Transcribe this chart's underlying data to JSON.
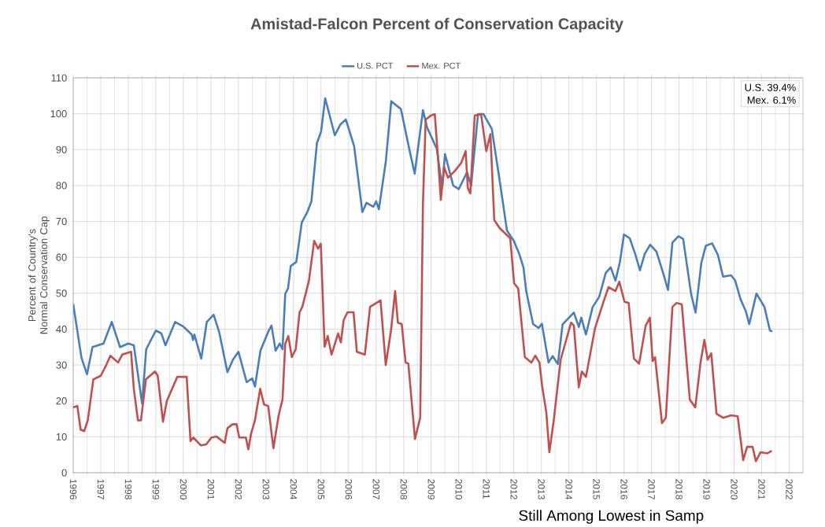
{
  "chart_data": {
    "type": "line",
    "title": "Amistad-Falcon Percent of Conservation Capacity",
    "ylabel": "Percent of Country's Normal Conservation Cap",
    "annotations": [
      "U.S. 39.4%",
      "Mex. 6.1%",
      "Still Among Lowest in Samp"
    ],
    "xlim": [
      1996,
      2022.5
    ],
    "xticks": [
      1996,
      1997,
      1998,
      1999,
      2000,
      2001,
      2002,
      2003,
      2004,
      2005,
      2006,
      2007,
      2008,
      2009,
      2010,
      2011,
      2012,
      2013,
      2014,
      2015,
      2016,
      2017,
      2018,
      2019,
      2020,
      2021,
      2022
    ],
    "ylim": [
      0,
      110
    ],
    "yticks": [
      0,
      10,
      20,
      30,
      40,
      50,
      60,
      70,
      80,
      90,
      100,
      110
    ],
    "grid": true,
    "legend": "top",
    "series": [
      {
        "name": "U.S. PCT",
        "color": "#4a7ebb",
        "x": [
          1996.0,
          1996.3,
          1996.5,
          1996.7,
          1997.1,
          1997.4,
          1997.7,
          1998.0,
          1998.2,
          1998.5,
          1998.65,
          1999.0,
          1999.2,
          1999.35,
          1999.7,
          2000.0,
          2000.3,
          2000.35,
          2000.4,
          2000.65,
          2000.85,
          2001.1,
          2001.3,
          2001.6,
          2001.8,
          2002.0,
          2002.3,
          2002.5,
          2002.6,
          2002.8,
          2003.1,
          2003.2,
          2003.35,
          2003.5,
          2003.6,
          2003.7,
          2003.8,
          2003.9,
          2004.1,
          2004.3,
          2004.5,
          2004.65,
          2004.85,
          2005.0,
          2005.15,
          2005.5,
          2005.7,
          2005.9,
          2006.2,
          2006.5,
          2006.65,
          2006.9,
          2007.0,
          2007.1,
          2007.35,
          2007.55,
          2007.9,
          2008.2,
          2008.4,
          2008.7,
          2008.85,
          2009.2,
          2009.4,
          2009.5,
          2009.8,
          2010.0,
          2010.3,
          2010.45,
          2010.7,
          2010.9,
          2011.2,
          2011.5,
          2011.75,
          2012.0,
          2012.2,
          2012.35,
          2012.45,
          2012.7,
          2012.9,
          2013.02,
          2013.26,
          2013.41,
          2013.6,
          2013.77,
          2014.18,
          2014.36,
          2014.45,
          2014.62,
          2014.86,
          2015.1,
          2015.34,
          2015.52,
          2015.69,
          2015.85,
          2016.0,
          2016.21,
          2016.41,
          2016.58,
          2016.75,
          2016.95,
          2017.18,
          2017.42,
          2017.6,
          2017.76,
          2017.98,
          2018.15,
          2018.44,
          2018.6,
          2018.81,
          2018.97,
          2019.2,
          2019.41,
          2019.6,
          2019.89,
          2020.04,
          2020.23,
          2020.42,
          2020.55,
          2020.81,
          2021.1,
          2021.3,
          2021.39
        ],
        "values": [
          47,
          32,
          27.4,
          35,
          36,
          42,
          35,
          36,
          35.5,
          19.3,
          34.4,
          39.6,
          38.8,
          35.5,
          42,
          40.7,
          38.5,
          37,
          38.5,
          31.8,
          42,
          44,
          39.2,
          28,
          31.5,
          33.7,
          25.2,
          26.3,
          24,
          34,
          39.6,
          41,
          34,
          36,
          34.4,
          49.9,
          51.3,
          57.6,
          58.7,
          69.7,
          72.6,
          75.6,
          91.8,
          95,
          104.3,
          94,
          97,
          98.4,
          91,
          72.6,
          75.2,
          74.1,
          75.6,
          73.4,
          86.6,
          103.5,
          101.3,
          90.3,
          83.3,
          101,
          96.2,
          90.3,
          79.5,
          88.8,
          80,
          79,
          83.7,
          80,
          99.9,
          99.9,
          95.8,
          80.7,
          67.5,
          64.6,
          60.9,
          57.2,
          50.6,
          41.4,
          40.3,
          41.5,
          30.7,
          32.5,
          30.3,
          41.3,
          44.6,
          40.6,
          43.2,
          38.5,
          46.1,
          49,
          55.7,
          57.2,
          53.5,
          58.6,
          66.4,
          65.3,
          60.9,
          56.4,
          60.9,
          63.5,
          61.6,
          55.7,
          50.9,
          64.1,
          65.9,
          65.1,
          49.7,
          44.6,
          58.5,
          63.2,
          63.9,
          60.7,
          54.6,
          55,
          53.5,
          48.4,
          45.1,
          41.4,
          49.9,
          46.2,
          39.6,
          39.4
        ]
      },
      {
        "name": "Mex. PCT",
        "color": "#c0504d",
        "x": [
          1996.0,
          1996.15,
          1996.27,
          1996.4,
          1996.53,
          1996.73,
          1997.0,
          1997.2,
          1997.35,
          1997.63,
          1997.78,
          1998.1,
          1998.2,
          1998.35,
          1998.46,
          1998.64,
          1998.97,
          1999.07,
          1999.26,
          1999.4,
          1999.78,
          2000.12,
          2000.26,
          2000.36,
          2000.64,
          2000.83,
          2001.02,
          2001.2,
          2001.5,
          2001.6,
          2001.79,
          2001.93,
          2002.03,
          2002.27,
          2002.36,
          2002.46,
          2002.6,
          2002.79,
          2002.93,
          2003.08,
          2003.27,
          2003.46,
          2003.6,
          2003.7,
          2003.81,
          2003.94,
          2004.08,
          2004.22,
          2004.32,
          2004.56,
          2004.75,
          2004.89,
          2004.99,
          2005.13,
          2005.24,
          2005.38,
          2005.62,
          2005.72,
          2005.82,
          2005.96,
          2006.18,
          2006.3,
          2006.59,
          2006.78,
          2007.16,
          2007.35,
          2007.54,
          2007.69,
          2007.79,
          2007.93,
          2008.07,
          2008.17,
          2008.41,
          2008.6,
          2008.7,
          2008.8,
          2008.99,
          2009.13,
          2009.23,
          2009.35,
          2009.47,
          2009.61,
          2009.85,
          2010.09,
          2010.25,
          2010.33,
          2010.42,
          2010.58,
          2010.81,
          2011.0,
          2011.15,
          2011.29,
          2011.48,
          2011.87,
          2012.01,
          2012.16,
          2012.4,
          2012.64,
          2012.78,
          2012.93,
          2013.03,
          2013.18,
          2013.29,
          2013.45,
          2013.7,
          2014.08,
          2014.18,
          2014.36,
          2014.47,
          2014.62,
          2014.95,
          2015.29,
          2015.44,
          2015.69,
          2015.83,
          2016.02,
          2016.17,
          2016.36,
          2016.55,
          2016.79,
          2016.94,
          2017.04,
          2017.13,
          2017.38,
          2017.52,
          2017.76,
          2017.91,
          2018.1,
          2018.39,
          2018.59,
          2018.78,
          2018.92,
          2019.04,
          2019.17,
          2019.36,
          2019.6,
          2019.89,
          2020.13,
          2020.33,
          2020.47,
          2020.67,
          2020.79,
          2020.96,
          2021.2,
          2021.37
        ],
        "values": [
          18.2,
          18.6,
          12,
          11.6,
          14.6,
          26,
          27,
          30,
          32.6,
          30.7,
          32.9,
          33.7,
          23.4,
          14.6,
          14.6,
          26,
          28.2,
          27,
          14.2,
          20,
          26.7,
          26.7,
          8.8,
          9.8,
          7.6,
          7.9,
          9.8,
          10.1,
          8.3,
          12.4,
          13.5,
          13.5,
          9.8,
          9.8,
          6.5,
          10.9,
          14.6,
          23.4,
          19,
          18.6,
          6.8,
          16,
          20.4,
          35.9,
          38.1,
          32.2,
          34.4,
          44.7,
          46.2,
          53.5,
          64.6,
          62.4,
          63.8,
          35.1,
          38.1,
          32.9,
          38.8,
          36.3,
          42.5,
          44.7,
          44.7,
          33.7,
          32.9,
          46.2,
          48,
          30,
          39.6,
          50.6,
          41.8,
          41.4,
          30.7,
          30.4,
          9.4,
          15.3,
          74.9,
          98.4,
          99.5,
          99.9,
          89.6,
          76,
          85.1,
          82.2,
          84,
          86.3,
          89.6,
          79.3,
          77.8,
          99.5,
          99.9,
          89.6,
          94.3,
          70.4,
          68.2,
          65.3,
          52.8,
          51.3,
          32.2,
          30.7,
          32.6,
          30.7,
          24.1,
          16.8,
          5.7,
          14.6,
          31.5,
          41.8,
          41,
          23.8,
          28.2,
          26.7,
          40.3,
          48.4,
          51.7,
          50.6,
          53.2,
          47.6,
          47.3,
          31.8,
          30.4,
          41,
          43.2,
          31.1,
          32.2,
          13.8,
          15.3,
          46.2,
          47.3,
          46.9,
          20.4,
          18.2,
          30.7,
          37,
          31.5,
          33.3,
          16.4,
          15.3,
          16,
          15.7,
          3.5,
          7.2,
          7.2,
          3.2,
          5.7,
          5.4,
          6.1
        ]
      }
    ]
  }
}
